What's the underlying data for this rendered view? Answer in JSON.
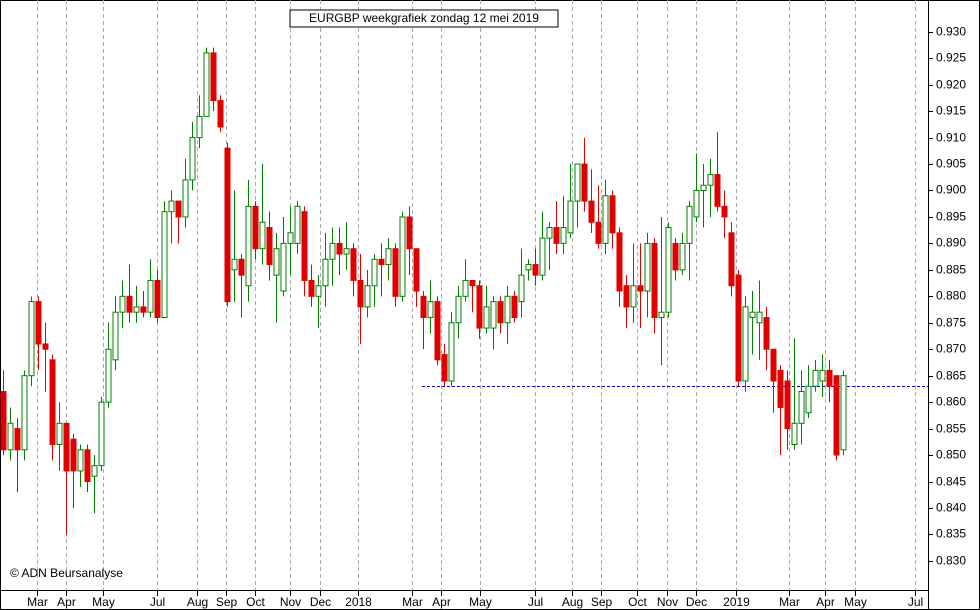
{
  "chart_data": {
    "type": "candlestick",
    "title": "EURGBP weekgrafiek zondag 12 mei 2019",
    "annotation": "© ADN Beursanalyse",
    "up_color": "#008000",
    "down_color": "#e00000",
    "level": 0.863,
    "level_color": "#0000a0",
    "ylim": [
      0.8245,
      0.936
    ],
    "yticks": [
      {
        "value": 0.83,
        "label": "0.830"
      },
      {
        "value": 0.835,
        "label": "0.835"
      },
      {
        "value": 0.84,
        "label": "0.840"
      },
      {
        "value": 0.845,
        "label": "0.845"
      },
      {
        "value": 0.85,
        "label": "0.850"
      },
      {
        "value": 0.855,
        "label": "0.855"
      },
      {
        "value": 0.86,
        "label": "0.860"
      },
      {
        "value": 0.865,
        "label": "0.865"
      },
      {
        "value": 0.87,
        "label": "0.870"
      },
      {
        "value": 0.875,
        "label": "0.875"
      },
      {
        "value": 0.88,
        "label": "0.880"
      },
      {
        "value": 0.885,
        "label": "0.885"
      },
      {
        "value": 0.89,
        "label": "0.890"
      },
      {
        "value": 0.895,
        "label": "0.895"
      },
      {
        "value": 0.9,
        "label": "0.900"
      },
      {
        "value": 0.905,
        "label": "0.905"
      },
      {
        "value": 0.91,
        "label": "0.910"
      },
      {
        "value": 0.915,
        "label": "0.915"
      },
      {
        "value": 0.92,
        "label": "0.920"
      },
      {
        "value": 0.925,
        "label": "0.925"
      },
      {
        "value": 0.93,
        "label": "0.930"
      }
    ],
    "xlim": [
      -0.5,
      132
    ],
    "xticks": [
      {
        "value": 4.9,
        "label": "Mar"
      },
      {
        "value": 9,
        "label": "Apr"
      },
      {
        "value": 14.3,
        "label": "May"
      },
      {
        "value": 22,
        "label": "Jul"
      },
      {
        "value": 27.7,
        "label": "Aug"
      },
      {
        "value": 31.9,
        "label": "Sep"
      },
      {
        "value": 36,
        "label": "Oct"
      },
      {
        "value": 41,
        "label": "Nov"
      },
      {
        "value": 45.3,
        "label": "Dec"
      },
      {
        "value": 50.7,
        "label": "2018"
      },
      {
        "value": 58.4,
        "label": "Mar"
      },
      {
        "value": 62.6,
        "label": "Apr"
      },
      {
        "value": 68.1,
        "label": "May"
      },
      {
        "value": 76,
        "label": "Jul"
      },
      {
        "value": 81.3,
        "label": "Aug"
      },
      {
        "value": 85.4,
        "label": "Sep"
      },
      {
        "value": 90.6,
        "label": "Oct"
      },
      {
        "value": 94.9,
        "label": "Nov"
      },
      {
        "value": 99,
        "label": "Dec"
      },
      {
        "value": 104.7,
        "label": "2019"
      },
      {
        "value": 112.3,
        "label": "Mar"
      },
      {
        "value": 117.4,
        "label": "Apr"
      },
      {
        "value": 121.7,
        "label": "May"
      },
      {
        "value": 130.3,
        "label": "Jul"
      }
    ],
    "open": [
      0.862,
      0.851,
      0.855,
      0.851,
      0.865,
      0.879,
      0.871,
      0.868,
      0.852,
      0.856,
      0.853,
      0.847,
      0.851,
      0.846,
      0.848,
      0.86,
      0.868,
      0.877,
      0.88,
      0.877,
      0.878,
      0.877,
      0.883,
      0.876,
      0.896,
      0.898,
      0.895,
      0.902,
      0.91,
      0.914,
      0.926,
      0.917,
      0.908,
      0.885,
      0.887,
      0.882,
      0.897,
      0.889,
      0.893,
      0.884,
      0.881,
      0.89,
      0.89,
      0.896,
      0.883,
      0.88,
      0.882,
      0.887,
      0.89,
      0.888,
      0.889,
      0.883,
      0.878,
      0.882,
      0.887,
      0.886,
      0.889,
      0.88,
      0.895,
      0.889,
      0.88,
      0.876,
      0.879,
      0.869,
      0.864,
      0.875,
      0.88,
      0.883,
      0.882,
      0.874,
      0.874,
      0.879,
      0.875,
      0.88,
      0.879,
      0.885,
      0.886,
      0.884,
      0.891,
      0.893,
      0.89,
      0.892,
      0.898,
      0.905,
      0.898,
      0.894,
      0.89,
      0.899,
      0.892,
      0.882,
      0.878,
      0.882,
      0.881,
      0.89,
      0.876,
      0.877,
      0.89,
      0.885,
      0.89,
      0.895,
      0.9,
      0.901,
      0.903,
      0.897,
      0.892,
      0.884,
      0.864,
      0.876,
      0.875,
      0.876,
      0.87,
      0.866,
      0.864,
      0.852,
      0.856,
      0.858,
      0.863,
      0.864,
      0.866,
      0.865,
      0.851
    ],
    "high": [
      0.866,
      0.859,
      0.857,
      0.866,
      0.88,
      0.88,
      0.875,
      0.869,
      0.86,
      0.856,
      0.854,
      0.852,
      0.852,
      0.85,
      0.861,
      0.875,
      0.88,
      0.883,
      0.886,
      0.882,
      0.881,
      0.887,
      0.885,
      0.898,
      0.9,
      0.898,
      0.906,
      0.913,
      0.918,
      0.927,
      0.927,
      0.918,
      0.909,
      0.9,
      0.888,
      0.902,
      0.898,
      0.905,
      0.896,
      0.892,
      0.895,
      0.897,
      0.898,
      0.897,
      0.886,
      0.884,
      0.892,
      0.893,
      0.893,
      0.894,
      0.89,
      0.888,
      0.885,
      0.888,
      0.89,
      0.891,
      0.89,
      0.896,
      0.897,
      0.889,
      0.881,
      0.883,
      0.88,
      0.871,
      0.877,
      0.882,
      0.887,
      0.883,
      0.883,
      0.882,
      0.88,
      0.88,
      0.882,
      0.881,
      0.889,
      0.887,
      0.889,
      0.896,
      0.894,
      0.898,
      0.899,
      0.905,
      0.905,
      0.91,
      0.904,
      0.901,
      0.902,
      0.9,
      0.893,
      0.884,
      0.89,
      0.89,
      0.892,
      0.891,
      0.895,
      0.894,
      0.891,
      0.892,
      0.898,
      0.907,
      0.905,
      0.906,
      0.911,
      0.9,
      0.894,
      0.885,
      0.88,
      0.881,
      0.883,
      0.878,
      0.87,
      0.867,
      0.866,
      0.872,
      0.866,
      0.867,
      0.868,
      0.869,
      0.868,
      0.865,
      0.866
    ],
    "low": [
      0.85,
      0.849,
      0.843,
      0.849,
      0.863,
      0.866,
      0.862,
      0.849,
      0.847,
      0.835,
      0.84,
      0.844,
      0.843,
      0.839,
      0.847,
      0.859,
      0.866,
      0.874,
      0.875,
      0.875,
      0.876,
      0.876,
      0.875,
      0.876,
      0.89,
      0.89,
      0.893,
      0.9,
      0.908,
      0.914,
      0.915,
      0.911,
      0.878,
      0.879,
      0.876,
      0.879,
      0.887,
      0.886,
      0.883,
      0.875,
      0.88,
      0.884,
      0.888,
      0.88,
      0.878,
      0.874,
      0.878,
      0.882,
      0.884,
      0.885,
      0.88,
      0.871,
      0.876,
      0.878,
      0.88,
      0.883,
      0.878,
      0.879,
      0.884,
      0.878,
      0.87,
      0.873,
      0.867,
      0.863,
      0.863,
      0.872,
      0.879,
      0.877,
      0.872,
      0.873,
      0.87,
      0.873,
      0.871,
      0.875,
      0.876,
      0.883,
      0.882,
      0.883,
      0.885,
      0.888,
      0.888,
      0.891,
      0.893,
      0.896,
      0.892,
      0.889,
      0.888,
      0.889,
      0.878,
      0.874,
      0.875,
      0.874,
      0.876,
      0.873,
      0.867,
      0.876,
      0.883,
      0.884,
      0.883,
      0.894,
      0.893,
      0.895,
      0.896,
      0.891,
      0.88,
      0.863,
      0.862,
      0.869,
      0.868,
      0.866,
      0.858,
      0.85,
      0.851,
      0.851,
      0.852,
      0.857,
      0.862,
      0.861,
      0.86,
      0.849,
      0.85
    ],
    "close": [
      0.851,
      0.856,
      0.851,
      0.865,
      0.879,
      0.871,
      0.87,
      0.852,
      0.856,
      0.847,
      0.847,
      0.851,
      0.845,
      0.848,
      0.86,
      0.87,
      0.877,
      0.88,
      0.877,
      0.878,
      0.877,
      0.883,
      0.876,
      0.896,
      0.898,
      0.895,
      0.902,
      0.91,
      0.914,
      0.926,
      0.917,
      0.912,
      0.879,
      0.887,
      0.884,
      0.897,
      0.889,
      0.894,
      0.886,
      0.889,
      0.89,
      0.892,
      0.897,
      0.883,
      0.88,
      0.882,
      0.887,
      0.89,
      0.888,
      0.889,
      0.883,
      0.878,
      0.882,
      0.887,
      0.886,
      0.889,
      0.88,
      0.895,
      0.889,
      0.881,
      0.876,
      0.879,
      0.868,
      0.864,
      0.875,
      0.88,
      0.883,
      0.882,
      0.874,
      0.878,
      0.879,
      0.875,
      0.88,
      0.876,
      0.884,
      0.886,
      0.884,
      0.891,
      0.893,
      0.89,
      0.893,
      0.898,
      0.905,
      0.898,
      0.894,
      0.89,
      0.899,
      0.892,
      0.881,
      0.878,
      0.882,
      0.881,
      0.89,
      0.876,
      0.877,
      0.893,
      0.885,
      0.89,
      0.897,
      0.9,
      0.901,
      0.903,
      0.897,
      0.895,
      0.882,
      0.864,
      0.878,
      0.877,
      0.877,
      0.87,
      0.864,
      0.859,
      0.855,
      0.856,
      0.862,
      0.863,
      0.866,
      0.866,
      0.863,
      0.85,
      0.865
    ]
  }
}
